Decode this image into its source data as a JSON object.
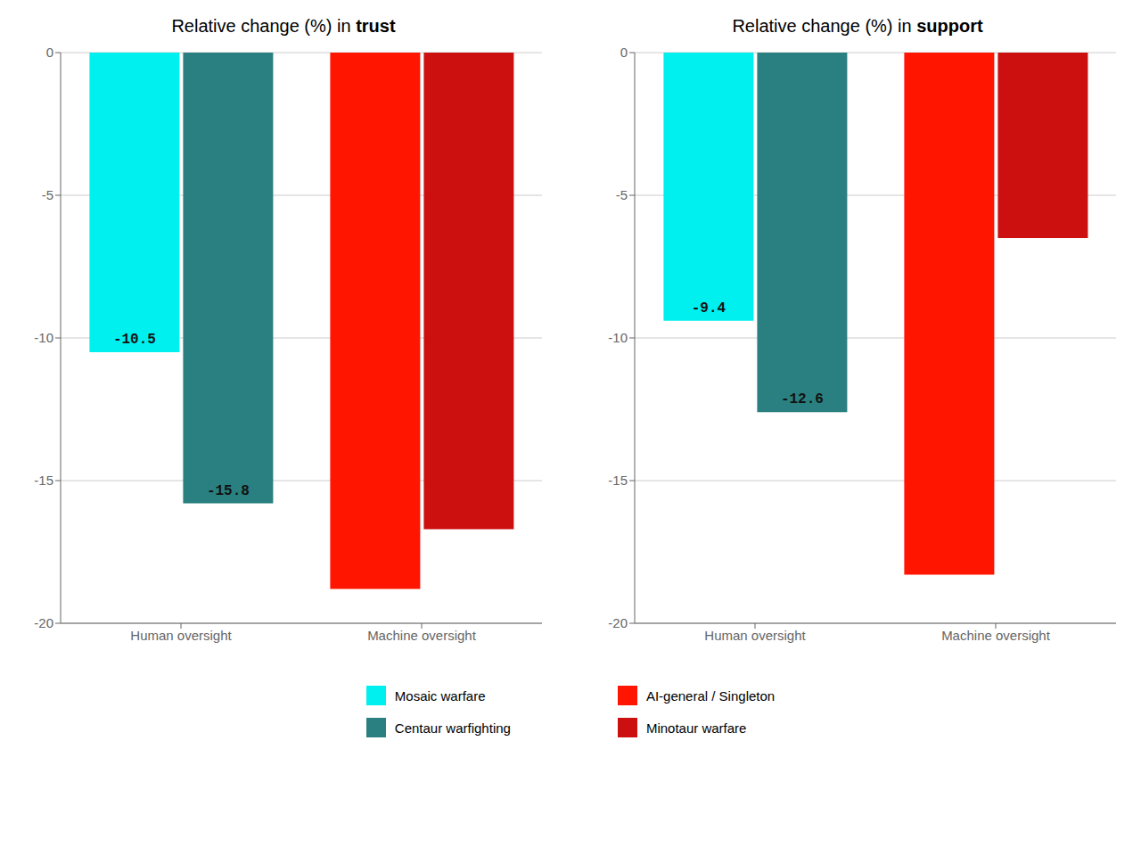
{
  "chart_data": [
    {
      "type": "bar",
      "title": "Relative change (%) in trust",
      "categories": [
        "Human oversight",
        "Machine oversight"
      ],
      "series": [
        {
          "name": "Mosaic warfare",
          "color": "#00EFEF",
          "values": [
            -10.5,
            null
          ]
        },
        {
          "name": "Centaur warfighting",
          "color": "#2A8080",
          "values": [
            -15.8,
            null
          ]
        },
        {
          "name": "AI-general / Singleton",
          "color": "#FF1500",
          "values": [
            null,
            -18.8
          ]
        },
        {
          "name": "Minotaur warfare",
          "color": "#CC1010",
          "values": [
            null,
            -16.7
          ]
        }
      ],
      "ylim": [
        -20,
        0
      ],
      "yticks": [
        0,
        -5,
        -10,
        -15,
        -20
      ],
      "grid": true,
      "data_labels": true
    },
    {
      "type": "bar",
      "title": "Relative change (%) in support",
      "categories": [
        "Human oversight",
        "Machine oversight"
      ],
      "series": [
        {
          "name": "Mosaic warfare",
          "color": "#00EFEF",
          "values": [
            -9.4,
            null
          ]
        },
        {
          "name": "Centaur warfighting",
          "color": "#2A8080",
          "values": [
            -12.6,
            null
          ]
        },
        {
          "name": "AI-general / Singleton",
          "color": "#FF1500",
          "values": [
            null,
            -18.3
          ]
        },
        {
          "name": "Minotaur warfare",
          "color": "#CC1010",
          "values": [
            null,
            -6.5
          ]
        }
      ],
      "ylim": [
        -20,
        0
      ],
      "yticks": [
        0,
        -5,
        -10,
        -15,
        -20
      ],
      "grid": true,
      "data_labels": true
    }
  ]
}
